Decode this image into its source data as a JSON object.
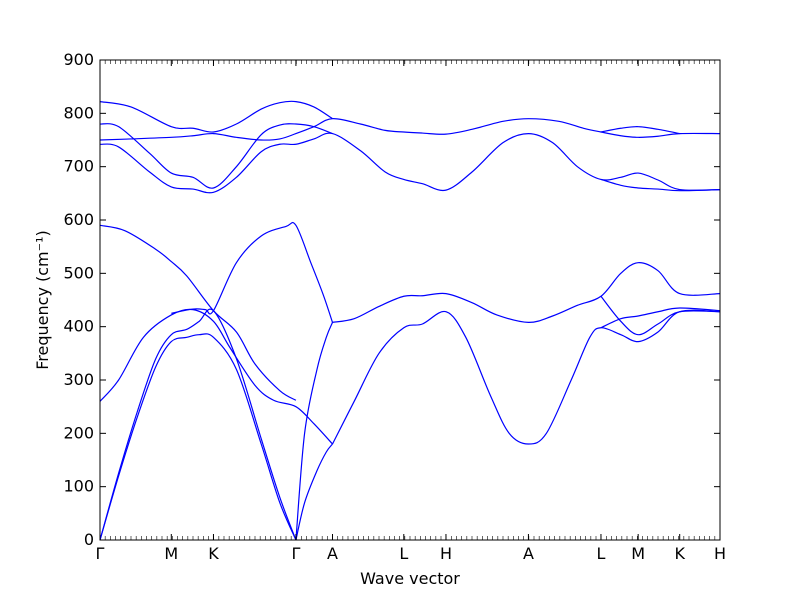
{
  "chart_data": {
    "type": "line",
    "title": "",
    "xlabel": "Wave vector",
    "ylabel": "Frequency (cm⁻¹)",
    "ylim": [
      0,
      900
    ],
    "yticks": [
      0,
      100,
      200,
      300,
      400,
      500,
      600,
      700,
      800,
      900
    ],
    "grid": false,
    "legend": "none",
    "line_color": "#0000ff",
    "xticks": [
      {
        "label": "Γ",
        "x": 0.0
      },
      {
        "label": "M",
        "x": 0.115
      },
      {
        "label": "K",
        "x": 0.183
      },
      {
        "label": "Γ",
        "x": 0.316
      },
      {
        "label": "A",
        "x": 0.375
      },
      {
        "label": "L",
        "x": 0.49
      },
      {
        "label": "H",
        "x": 0.558
      },
      {
        "label": "A",
        "x": 0.691
      },
      {
        "label": "L",
        "x": 0.808
      },
      {
        "label": "M",
        "x": 0.868
      },
      {
        "label": "K",
        "x": 0.935
      },
      {
        "label": "H",
        "x": 1.0
      }
    ],
    "series": [
      {
        "values": [
          [
            0.0,
            0
          ],
          [
            0.03,
            120
          ],
          [
            0.06,
            230
          ],
          [
            0.09,
            325
          ],
          [
            0.115,
            372
          ],
          [
            0.14,
            380
          ],
          [
            0.16,
            385
          ],
          [
            0.183,
            380
          ],
          [
            0.22,
            320
          ],
          [
            0.26,
            180
          ],
          [
            0.29,
            70
          ],
          [
            0.316,
            0
          ]
        ]
      },
      {
        "values": [
          [
            0.0,
            0
          ],
          [
            0.03,
            125
          ],
          [
            0.06,
            240
          ],
          [
            0.09,
            340
          ],
          [
            0.115,
            385
          ],
          [
            0.14,
            395
          ],
          [
            0.16,
            410
          ],
          [
            0.183,
            430
          ],
          [
            0.22,
            340
          ],
          [
            0.26,
            190
          ],
          [
            0.29,
            80
          ],
          [
            0.316,
            0
          ]
        ]
      },
      {
        "values": [
          [
            0.0,
            260
          ],
          [
            0.03,
            300
          ],
          [
            0.07,
            380
          ],
          [
            0.115,
            422
          ],
          [
            0.15,
            432
          ],
          [
            0.183,
            410
          ],
          [
            0.21,
            360
          ],
          [
            0.25,
            290
          ],
          [
            0.28,
            262
          ],
          [
            0.316,
            250
          ],
          [
            0.345,
            218
          ],
          [
            0.375,
            180
          ]
        ]
      },
      {
        "values": [
          [
            0.0,
            590
          ],
          [
            0.04,
            580
          ],
          [
            0.09,
            545
          ],
          [
            0.115,
            522
          ],
          [
            0.14,
            495
          ],
          [
            0.183,
            430
          ],
          [
            0.22,
            390
          ],
          [
            0.25,
            330
          ],
          [
            0.29,
            280
          ],
          [
            0.316,
            262
          ]
        ]
      },
      {
        "values": [
          [
            0.115,
            425
          ],
          [
            0.15,
            433
          ],
          [
            0.17,
            432
          ],
          [
            0.183,
            430
          ],
          [
            0.22,
            520
          ],
          [
            0.26,
            570
          ],
          [
            0.3,
            588
          ],
          [
            0.316,
            590
          ],
          [
            0.34,
            520
          ],
          [
            0.36,
            460
          ],
          [
            0.375,
            408
          ]
        ]
      },
      {
        "values": [
          [
            0.316,
            0
          ],
          [
            0.33,
            200
          ],
          [
            0.35,
            320
          ],
          [
            0.365,
            380
          ],
          [
            0.375,
            408
          ]
        ]
      },
      {
        "values": [
          [
            0.316,
            0
          ],
          [
            0.33,
            70
          ],
          [
            0.35,
            130
          ],
          [
            0.365,
            165
          ],
          [
            0.375,
            180
          ]
        ]
      },
      {
        "values": [
          [
            0.375,
            180
          ],
          [
            0.41,
            260
          ],
          [
            0.45,
            350
          ],
          [
            0.49,
            398
          ],
          [
            0.52,
            405
          ],
          [
            0.558,
            428
          ],
          [
            0.59,
            380
          ],
          [
            0.63,
            270
          ],
          [
            0.66,
            200
          ],
          [
            0.691,
            180
          ],
          [
            0.72,
            200
          ],
          [
            0.76,
            300
          ],
          [
            0.79,
            380
          ],
          [
            0.808,
            398
          ],
          [
            0.84,
            385
          ],
          [
            0.868,
            372
          ],
          [
            0.9,
            390
          ],
          [
            0.935,
            428
          ],
          [
            1.0,
            428
          ]
        ]
      },
      {
        "values": [
          [
            0.375,
            408
          ],
          [
            0.41,
            415
          ],
          [
            0.45,
            438
          ],
          [
            0.49,
            457
          ],
          [
            0.52,
            458
          ],
          [
            0.558,
            462
          ],
          [
            0.6,
            445
          ],
          [
            0.64,
            422
          ],
          [
            0.691,
            408
          ],
          [
            0.73,
            420
          ],
          [
            0.77,
            440
          ],
          [
            0.808,
            457
          ],
          [
            0.84,
            500
          ],
          [
            0.868,
            520
          ],
          [
            0.9,
            505
          ],
          [
            0.935,
            462
          ],
          [
            1.0,
            462
          ]
        ]
      },
      {
        "values": [
          [
            0.808,
            398
          ],
          [
            0.84,
            415
          ],
          [
            0.868,
            420
          ],
          [
            0.9,
            428
          ],
          [
            0.935,
            435
          ],
          [
            1.0,
            430
          ]
        ]
      },
      {
        "values": [
          [
            0.808,
            457
          ],
          [
            0.84,
            410
          ],
          [
            0.868,
            385
          ],
          [
            0.9,
            405
          ],
          [
            0.935,
            428
          ],
          [
            1.0,
            428
          ]
        ]
      },
      {
        "values": [
          [
            0.0,
            750
          ],
          [
            0.05,
            752
          ],
          [
            0.115,
            755
          ],
          [
            0.15,
            758
          ],
          [
            0.183,
            762
          ],
          [
            0.22,
            755
          ],
          [
            0.26,
            750
          ],
          [
            0.29,
            752
          ],
          [
            0.316,
            762
          ],
          [
            0.345,
            775
          ],
          [
            0.375,
            790
          ],
          [
            0.42,
            780
          ],
          [
            0.46,
            768
          ],
          [
            0.49,
            765
          ],
          [
            0.52,
            763
          ],
          [
            0.558,
            761
          ],
          [
            0.6,
            770
          ],
          [
            0.65,
            785
          ],
          [
            0.691,
            790
          ],
          [
            0.74,
            785
          ],
          [
            0.78,
            772
          ],
          [
            0.808,
            765
          ],
          [
            0.84,
            758
          ],
          [
            0.868,
            755
          ],
          [
            0.9,
            757
          ],
          [
            0.935,
            762
          ],
          [
            1.0,
            762
          ]
        ]
      },
      {
        "values": [
          [
            0.0,
            822
          ],
          [
            0.05,
            812
          ],
          [
            0.115,
            775
          ],
          [
            0.15,
            772
          ],
          [
            0.183,
            765
          ],
          [
            0.22,
            780
          ],
          [
            0.26,
            808
          ],
          [
            0.29,
            820
          ],
          [
            0.316,
            822
          ],
          [
            0.345,
            812
          ],
          [
            0.375,
            790
          ]
        ]
      },
      {
        "values": [
          [
            0.0,
            780
          ],
          [
            0.03,
            775
          ],
          [
            0.08,
            725
          ],
          [
            0.115,
            688
          ],
          [
            0.15,
            680
          ],
          [
            0.183,
            660
          ],
          [
            0.22,
            700
          ],
          [
            0.26,
            760
          ],
          [
            0.29,
            778
          ],
          [
            0.316,
            780
          ],
          [
            0.345,
            775
          ],
          [
            0.375,
            762
          ]
        ]
      },
      {
        "values": [
          [
            0.0,
            742
          ],
          [
            0.03,
            737
          ],
          [
            0.08,
            690
          ],
          [
            0.115,
            662
          ],
          [
            0.15,
            658
          ],
          [
            0.183,
            652
          ],
          [
            0.22,
            680
          ],
          [
            0.26,
            728
          ],
          [
            0.29,
            742
          ],
          [
            0.316,
            742
          ],
          [
            0.345,
            752
          ],
          [
            0.375,
            762
          ],
          [
            0.42,
            730
          ],
          [
            0.46,
            690
          ],
          [
            0.49,
            676
          ],
          [
            0.52,
            668
          ],
          [
            0.558,
            656
          ],
          [
            0.6,
            690
          ],
          [
            0.65,
            745
          ],
          [
            0.691,
            762
          ],
          [
            0.73,
            745
          ],
          [
            0.77,
            700
          ],
          [
            0.808,
            676
          ],
          [
            0.84,
            680
          ],
          [
            0.868,
            688
          ],
          [
            0.9,
            675
          ],
          [
            0.935,
            657
          ],
          [
            1.0,
            657
          ]
        ]
      },
      {
        "values": [
          [
            0.808,
            676
          ],
          [
            0.84,
            665
          ],
          [
            0.868,
            660
          ],
          [
            0.9,
            658
          ],
          [
            0.935,
            655
          ],
          [
            1.0,
            657
          ]
        ]
      },
      {
        "values": [
          [
            0.808,
            765
          ],
          [
            0.84,
            772
          ],
          [
            0.868,
            775
          ],
          [
            0.9,
            770
          ],
          [
            0.935,
            762
          ]
        ]
      }
    ]
  }
}
